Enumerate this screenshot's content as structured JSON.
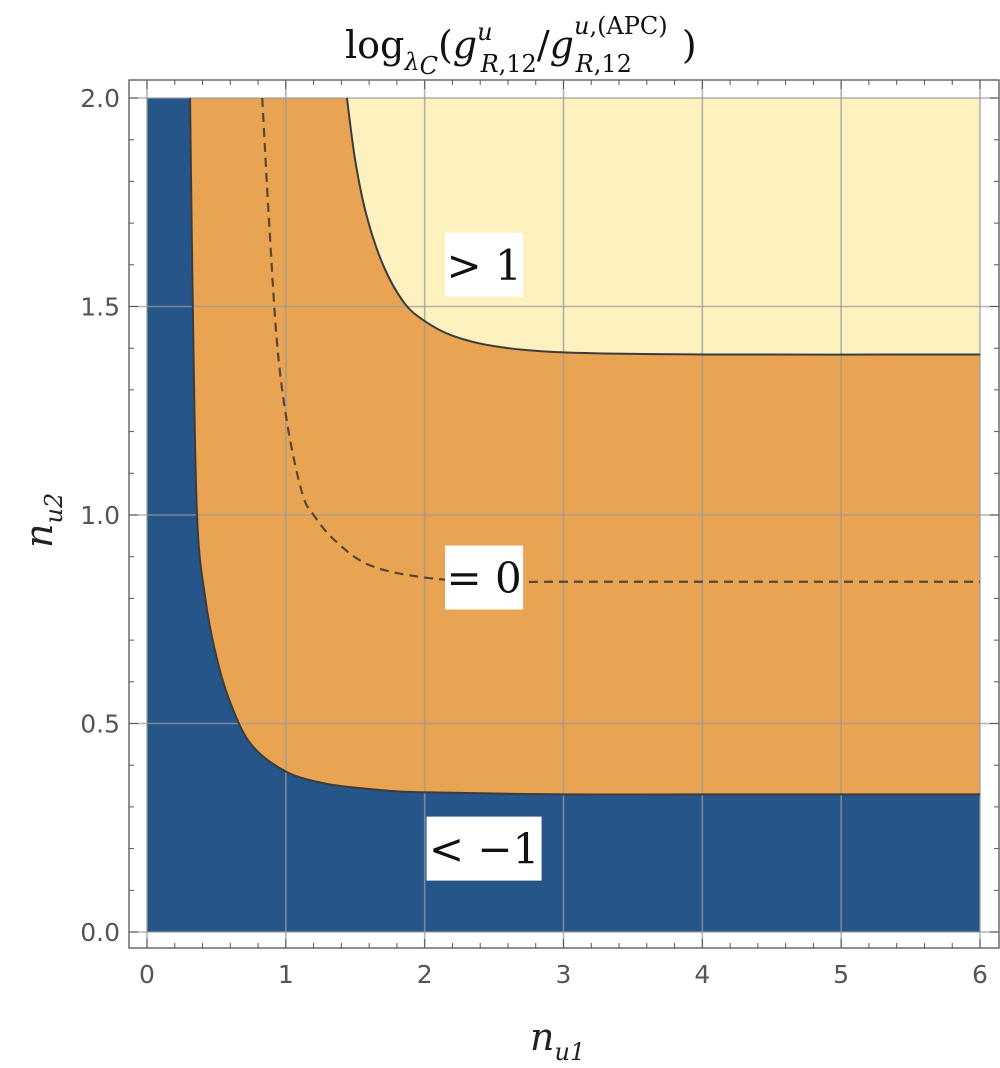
{
  "chart_data": {
    "type": "contour",
    "title": "log_λC(g^u_R,12 / g^u,(APC)_R,12)",
    "xlabel": "n_u1",
    "ylabel": "n_u2",
    "xlim": [
      0,
      6
    ],
    "ylim": [
      0,
      2
    ],
    "xticks": [
      "0",
      "1",
      "2",
      "3",
      "4",
      "5",
      "6"
    ],
    "yticks": [
      "0.0",
      "0.5",
      "1.0",
      "1.5",
      "2.0"
    ],
    "grid": true,
    "regions": [
      {
        "label": "< −1",
        "color": "#26558a"
      },
      {
        "label": "",
        "color": "#e8a452"
      },
      {
        "label": "> 1",
        "color": "#fdf1c0"
      }
    ],
    "contours": [
      {
        "level": -1,
        "style": "solid",
        "points": [
          [
            0.31,
            2.0
          ],
          [
            0.33,
            1.5
          ],
          [
            0.36,
            1.0
          ],
          [
            0.42,
            0.8
          ],
          [
            0.5,
            0.66
          ],
          [
            0.6,
            0.55
          ],
          [
            0.75,
            0.45
          ],
          [
            1.0,
            0.385
          ],
          [
            1.3,
            0.355
          ],
          [
            1.7,
            0.34
          ],
          [
            2.0,
            0.335
          ],
          [
            3.0,
            0.33
          ],
          [
            4.0,
            0.33
          ],
          [
            6.0,
            0.33
          ]
        ]
      },
      {
        "level": 0,
        "style": "dashed",
        "points": [
          [
            0.83,
            2.0
          ],
          [
            0.88,
            1.7
          ],
          [
            0.94,
            1.4
          ],
          [
            1.02,
            1.2
          ],
          [
            1.12,
            1.05
          ],
          [
            1.2,
            1.0
          ],
          [
            1.35,
            0.94
          ],
          [
            1.6,
            0.88
          ],
          [
            2.0,
            0.85
          ],
          [
            2.5,
            0.84
          ],
          [
            3.0,
            0.84
          ],
          [
            4.0,
            0.84
          ],
          [
            6.0,
            0.84
          ]
        ]
      },
      {
        "level": 1,
        "style": "solid",
        "points": [
          [
            1.44,
            2.0
          ],
          [
            1.5,
            1.85
          ],
          [
            1.58,
            1.72
          ],
          [
            1.7,
            1.6
          ],
          [
            1.85,
            1.51
          ],
          [
            2.0,
            1.465
          ],
          [
            2.2,
            1.43
          ],
          [
            2.5,
            1.405
          ],
          [
            3.0,
            1.39
          ],
          [
            4.0,
            1.385
          ],
          [
            6.0,
            1.385
          ]
        ]
      }
    ],
    "annotations": [
      {
        "text": "> 1",
        "x": 2.5,
        "y": 1.6
      },
      {
        "text": "= 0",
        "x": 2.5,
        "y": 0.85
      },
      {
        "text": "< −1",
        "x": 2.5,
        "y": 0.2
      }
    ]
  }
}
